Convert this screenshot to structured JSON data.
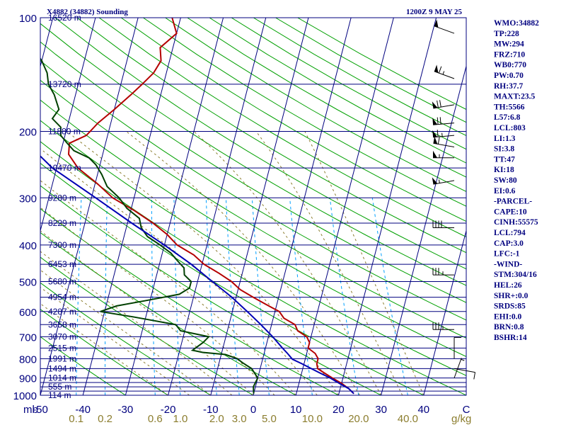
{
  "header": {
    "station_title": "X4882 (34882) Sounding",
    "valid_time": "1200Z  9 MAY 25"
  },
  "colors": {
    "frame": "#00007f",
    "isobar": "#00007f",
    "isotherm": "#00007f",
    "dry_adiabat": "#00a000",
    "moist_adiabat": "#8b7d2e",
    "mixing_ratio": "#00a0ff",
    "temperature": "#b40000",
    "dewpoint": "#004000",
    "parcel": "#0000b4",
    "wind_barb": "#000000",
    "text": "#00007f",
    "mixing_label": "#8b7d2e"
  },
  "pressure_axis": {
    "unit_label": "mb",
    "levels": [
      100,
      200,
      300,
      400,
      500,
      600,
      700,
      800,
      900,
      1000
    ],
    "drawn_isobars": [
      100,
      150,
      200,
      250,
      300,
      350,
      400,
      450,
      500,
      550,
      600,
      650,
      700,
      750,
      800,
      850,
      900,
      925,
      950,
      975,
      1000
    ]
  },
  "temperature_axis": {
    "labels": [
      "-50",
      "-40",
      "-30",
      "-20",
      "-10",
      "0",
      "10",
      "20",
      "30",
      "40",
      "C"
    ],
    "values": [
      -50,
      -40,
      -30,
      -20,
      -10,
      0,
      10,
      20,
      30,
      40
    ],
    "unit": "C"
  },
  "mixing_ratio_axis": {
    "labels": [
      "0.1",
      "0.2",
      "0.6",
      "1.0",
      "2.0",
      "3.0",
      "5.0",
      "10.0",
      "20.0",
      "40.0"
    ],
    "values": [
      0.1,
      0.2,
      0.6,
      1.0,
      2.0,
      3.0,
      5.0,
      10.0,
      20.0,
      40.0
    ],
    "unit": "g/kg"
  },
  "height_labels": [
    {
      "p": 100,
      "text": "16520 m"
    },
    {
      "p": 150,
      "text": "13720 m"
    },
    {
      "p": 200,
      "text": "11880 m"
    },
    {
      "p": 250,
      "text": "10470 m"
    },
    {
      "p": 300,
      "text": "9280 m"
    },
    {
      "p": 350,
      "text": "8229 m"
    },
    {
      "p": 400,
      "text": "7300 m"
    },
    {
      "p": 450,
      "text": "6453 m"
    },
    {
      "p": 500,
      "text": "5680 m"
    },
    {
      "p": 550,
      "text": "4954 m"
    },
    {
      "p": 600,
      "text": "4287 m"
    },
    {
      "p": 650,
      "text": "3658 m"
    },
    {
      "p": 700,
      "text": "3070 m"
    },
    {
      "p": 750,
      "text": "2515 m"
    },
    {
      "p": 800,
      "text": "1991 m"
    },
    {
      "p": 850,
      "text": "1494 m"
    },
    {
      "p": 900,
      "text": "1014 m"
    },
    {
      "p": 950,
      "text": "555 m"
    },
    {
      "p": 1000,
      "text": "114 m"
    }
  ],
  "indices": [
    "WMO:34882",
    "TP:228",
    "MW:294",
    "FRZ:710",
    "WB0:770",
    "PW:0.70",
    "RH:37.7",
    "MAXT:23.5",
    "TH:5566",
    "L57:6.8",
    "LCL:803",
    "LI:1.3",
    "SI:3.8",
    "TT:47",
    "KI:18",
    "SW:80",
    "EI:0.6",
    "-PARCEL-",
    "CAPE:10",
    "CINH:55575",
    "LCL:794",
    "CAP:3.0",
    "LFC:-1",
    "-WIND-",
    "STM:304/16",
    "HEL:26",
    "SHR+:0.0",
    "SRDS:85",
    "EHI:0.0",
    "BRN:0.8",
    "BSHR:14"
  ],
  "chart_data": {
    "type": "line",
    "title": "X4882 (34882) Sounding",
    "subtitle": "1200Z  9 MAY 25",
    "xlabel": "C",
    "ylabel": "mb",
    "xlim": [
      -50,
      50
    ],
    "ylim": [
      1000,
      100
    ],
    "y_scale": "log",
    "grid": true,
    "series": [
      {
        "key": "temperature",
        "p": [
          990,
          960,
          930,
          900,
          875,
          850,
          825,
          800,
          775,
          750,
          725,
          700,
          675,
          650,
          625,
          600,
          575,
          550,
          525,
          500,
          475,
          450,
          425,
          400,
          375,
          350,
          325,
          300,
          275,
          250,
          230,
          215,
          205,
          190,
          175,
          160,
          150,
          140,
          130,
          120,
          110,
          100
        ],
        "values": [
          23.5,
          22.0,
          20.0,
          17.5,
          15.5,
          13.5,
          13.0,
          13.0,
          12.0,
          10.0,
          10.0,
          9.0,
          6.5,
          5.5,
          2.5,
          1.0,
          -2.5,
          -6.0,
          -9.5,
          -12.0,
          -15.5,
          -19.5,
          -22.5,
          -27.0,
          -30.0,
          -34.0,
          -39.0,
          -45.0,
          -49.5,
          -55.0,
          -58.0,
          -58.5,
          -55.0,
          -53.0,
          -50.0,
          -47.0,
          -45.0,
          -43.0,
          -42.0,
          -43.0,
          -40.0,
          -42.0
        ]
      },
      {
        "key": "dewpoint",
        "p": [
          990,
          950,
          900,
          850,
          820,
          800,
          780,
          770,
          760,
          725,
          700,
          675,
          650,
          620,
          600,
          580,
          560,
          540,
          520,
          500,
          480,
          460,
          440,
          420,
          400,
          380,
          360,
          340,
          320,
          300,
          280,
          260,
          245,
          235,
          225,
          215,
          205,
          195,
          185,
          175,
          160,
          150,
          140,
          130,
          120,
          110,
          100
        ],
        "values": [
          0.0,
          -0.5,
          0.0,
          -2.0,
          -4.5,
          -6.0,
          -9.0,
          -14.5,
          -17.0,
          -15.0,
          -14.0,
          -21.0,
          -22.5,
          -33.0,
          -41.0,
          -37.5,
          -30.5,
          -23.5,
          -21.5,
          -21.5,
          -23.5,
          -24.0,
          -26.0,
          -28.0,
          -31.0,
          -34.5,
          -36.5,
          -37.5,
          -41.0,
          -43.5,
          -47.0,
          -49.0,
          -51.0,
          -53.0,
          -57.0,
          -59.0,
          -61.0,
          -61.5,
          -64.0,
          -63.0,
          -65.0,
          -67.0,
          -68.0,
          -70.0,
          -73.0,
          -76.0,
          -77.0
        ]
      },
      {
        "key": "parcel",
        "p": [
          990,
          960,
          930,
          900,
          875,
          850,
          825,
          803,
          775,
          750,
          700,
          650,
          600,
          550,
          500,
          450,
          400,
          350,
          300,
          250,
          200,
          175,
          150,
          125,
          110
        ],
        "values": [
          23.5,
          22.0,
          19.5,
          17.0,
          14.5,
          12.0,
          9.5,
          7.0,
          5.5,
          4.0,
          1.0,
          -2.5,
          -6.5,
          -11.0,
          -16.5,
          -22.5,
          -30.0,
          -39.0,
          -49.0,
          -61.0,
          -72.0,
          -79.0,
          -85.0,
          -92.0,
          -96.0
        ]
      }
    ]
  },
  "winds": [
    {
      "p": 110,
      "dir": 290,
      "spd": 50
    },
    {
      "p": 145,
      "dir": 290,
      "spd": 65
    },
    {
      "p": 170,
      "dir": 260,
      "spd": 70
    },
    {
      "p": 190,
      "dir": 265,
      "spd": 70
    },
    {
      "p": 205,
      "dir": 265,
      "spd": 65
    },
    {
      "p": 220,
      "dir": 280,
      "spd": 60
    },
    {
      "p": 235,
      "dir": 270,
      "spd": 55
    },
    {
      "p": 270,
      "dir": 260,
      "spd": 55
    },
    {
      "p": 360,
      "dir": 270,
      "spd": 40
    },
    {
      "p": 480,
      "dir": 270,
      "spd": 35
    },
    {
      "p": 670,
      "dir": 270,
      "spd": 35
    },
    {
      "p": 800,
      "dir": 0,
      "spd": 10
    },
    {
      "p": 850,
      "dir": 100,
      "spd": 10
    },
    {
      "p": 900,
      "dir": 20,
      "spd": 5
    }
  ]
}
